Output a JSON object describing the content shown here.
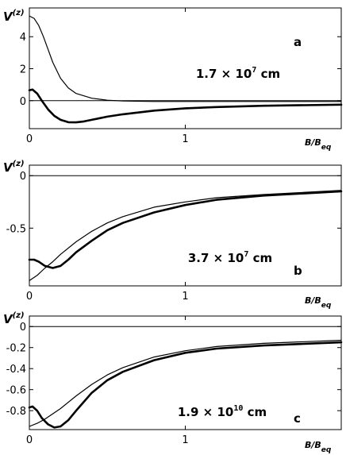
{
  "chart_data": [
    {
      "type": "line",
      "panel_label": "a",
      "ylabel": {
        "base": "V",
        "sup": "(z)"
      },
      "xlabel": {
        "base": "B/B",
        "sub": "eq"
      },
      "annotation": {
        "mantissa": "1.7 × 10",
        "exponent": "7",
        "unit": "cm"
      },
      "xlim": [
        0,
        2
      ],
      "ylim": [
        -1.75,
        5.8
      ],
      "xticks": [
        0,
        1
      ],
      "xtick_labels": [
        "0",
        "1"
      ],
      "yticks": [
        0,
        2,
        4
      ],
      "ytick_labels": [
        "0",
        "2",
        "4"
      ],
      "zero_line": true,
      "series": [
        {
          "style": "thin",
          "x": [
            0,
            0.03,
            0.06,
            0.09,
            0.12,
            0.15,
            0.2,
            0.25,
            0.3,
            0.4,
            0.5,
            0.6,
            0.8,
            1.0,
            1.2,
            1.5,
            2.0
          ],
          "y": [
            5.3,
            5.15,
            4.7,
            4.0,
            3.2,
            2.4,
            1.4,
            0.8,
            0.45,
            0.15,
            0.03,
            -0.02,
            -0.05,
            -0.05,
            -0.05,
            -0.05,
            -0.05
          ]
        },
        {
          "style": "thick",
          "x": [
            0,
            0.02,
            0.05,
            0.08,
            0.12,
            0.16,
            0.2,
            0.25,
            0.3,
            0.35,
            0.4,
            0.5,
            0.6,
            0.8,
            1.0,
            1.2,
            1.5,
            2.0
          ],
          "y": [
            0.65,
            0.7,
            0.45,
            0.0,
            -0.55,
            -0.95,
            -1.2,
            -1.35,
            -1.36,
            -1.3,
            -1.2,
            -1.0,
            -0.85,
            -0.62,
            -0.48,
            -0.4,
            -0.32,
            -0.25
          ]
        }
      ]
    },
    {
      "type": "line",
      "panel_label": "b",
      "ylabel": {
        "base": "V",
        "sup": "(z)"
      },
      "xlabel": {
        "base": "B/B",
        "sub": "eq"
      },
      "annotation": {
        "mantissa": "3.7 × 10",
        "exponent": "7",
        "unit": "cm"
      },
      "xlim": [
        0,
        2
      ],
      "ylim": [
        -1.05,
        0.1
      ],
      "xticks": [
        0,
        1
      ],
      "xtick_labels": [
        "0",
        "1"
      ],
      "yticks": [
        0,
        -0.5
      ],
      "ytick_labels": [
        "0",
        "-0.5"
      ],
      "zero_line": true,
      "series": [
        {
          "style": "thin",
          "x": [
            0,
            0.05,
            0.1,
            0.15,
            0.2,
            0.3,
            0.4,
            0.5,
            0.6,
            0.8,
            1.0,
            1.2,
            1.5,
            2.0
          ],
          "y": [
            -1.0,
            -0.95,
            -0.88,
            -0.82,
            -0.75,
            -0.63,
            -0.53,
            -0.45,
            -0.39,
            -0.3,
            -0.25,
            -0.21,
            -0.18,
            -0.14
          ]
        },
        {
          "style": "thick",
          "x": [
            0,
            0.03,
            0.06,
            0.1,
            0.15,
            0.2,
            0.25,
            0.3,
            0.4,
            0.5,
            0.6,
            0.8,
            1.0,
            1.2,
            1.5,
            2.0
          ],
          "y": [
            -0.8,
            -0.8,
            -0.82,
            -0.86,
            -0.88,
            -0.86,
            -0.8,
            -0.73,
            -0.62,
            -0.52,
            -0.45,
            -0.35,
            -0.28,
            -0.23,
            -0.19,
            -0.15
          ]
        }
      ]
    },
    {
      "type": "line",
      "panel_label": "c",
      "ylabel": {
        "base": "V",
        "sup": "(z)"
      },
      "xlabel": {
        "base": "B/B",
        "sub": "eq"
      },
      "annotation": {
        "mantissa": "1.9 × 10",
        "exponent": "10",
        "unit": "cm"
      },
      "xlim": [
        0,
        2
      ],
      "ylim": [
        -0.98,
        0.1
      ],
      "xticks": [
        0,
        1
      ],
      "xtick_labels": [
        "0",
        "1"
      ],
      "yticks": [
        0,
        -0.2,
        -0.4,
        -0.6,
        -0.8
      ],
      "ytick_labels": [
        "0",
        "-0.2",
        "-0.4",
        "-0.6",
        "-0.8"
      ],
      "zero_line": true,
      "series": [
        {
          "style": "thin",
          "x": [
            0,
            0.05,
            0.1,
            0.2,
            0.3,
            0.4,
            0.5,
            0.6,
            0.8,
            1.0,
            1.2,
            1.5,
            2.0
          ],
          "y": [
            -0.95,
            -0.92,
            -0.88,
            -0.78,
            -0.66,
            -0.55,
            -0.46,
            -0.39,
            -0.29,
            -0.23,
            -0.19,
            -0.16,
            -0.13
          ]
        },
        {
          "style": "thick",
          "x": [
            0,
            0.02,
            0.05,
            0.08,
            0.12,
            0.16,
            0.2,
            0.25,
            0.3,
            0.4,
            0.5,
            0.6,
            0.8,
            1.0,
            1.2,
            1.5,
            2.0
          ],
          "y": [
            -0.77,
            -0.76,
            -0.8,
            -0.87,
            -0.93,
            -0.96,
            -0.95,
            -0.89,
            -0.8,
            -0.63,
            -0.51,
            -0.43,
            -0.32,
            -0.25,
            -0.21,
            -0.18,
            -0.15
          ]
        }
      ]
    }
  ]
}
